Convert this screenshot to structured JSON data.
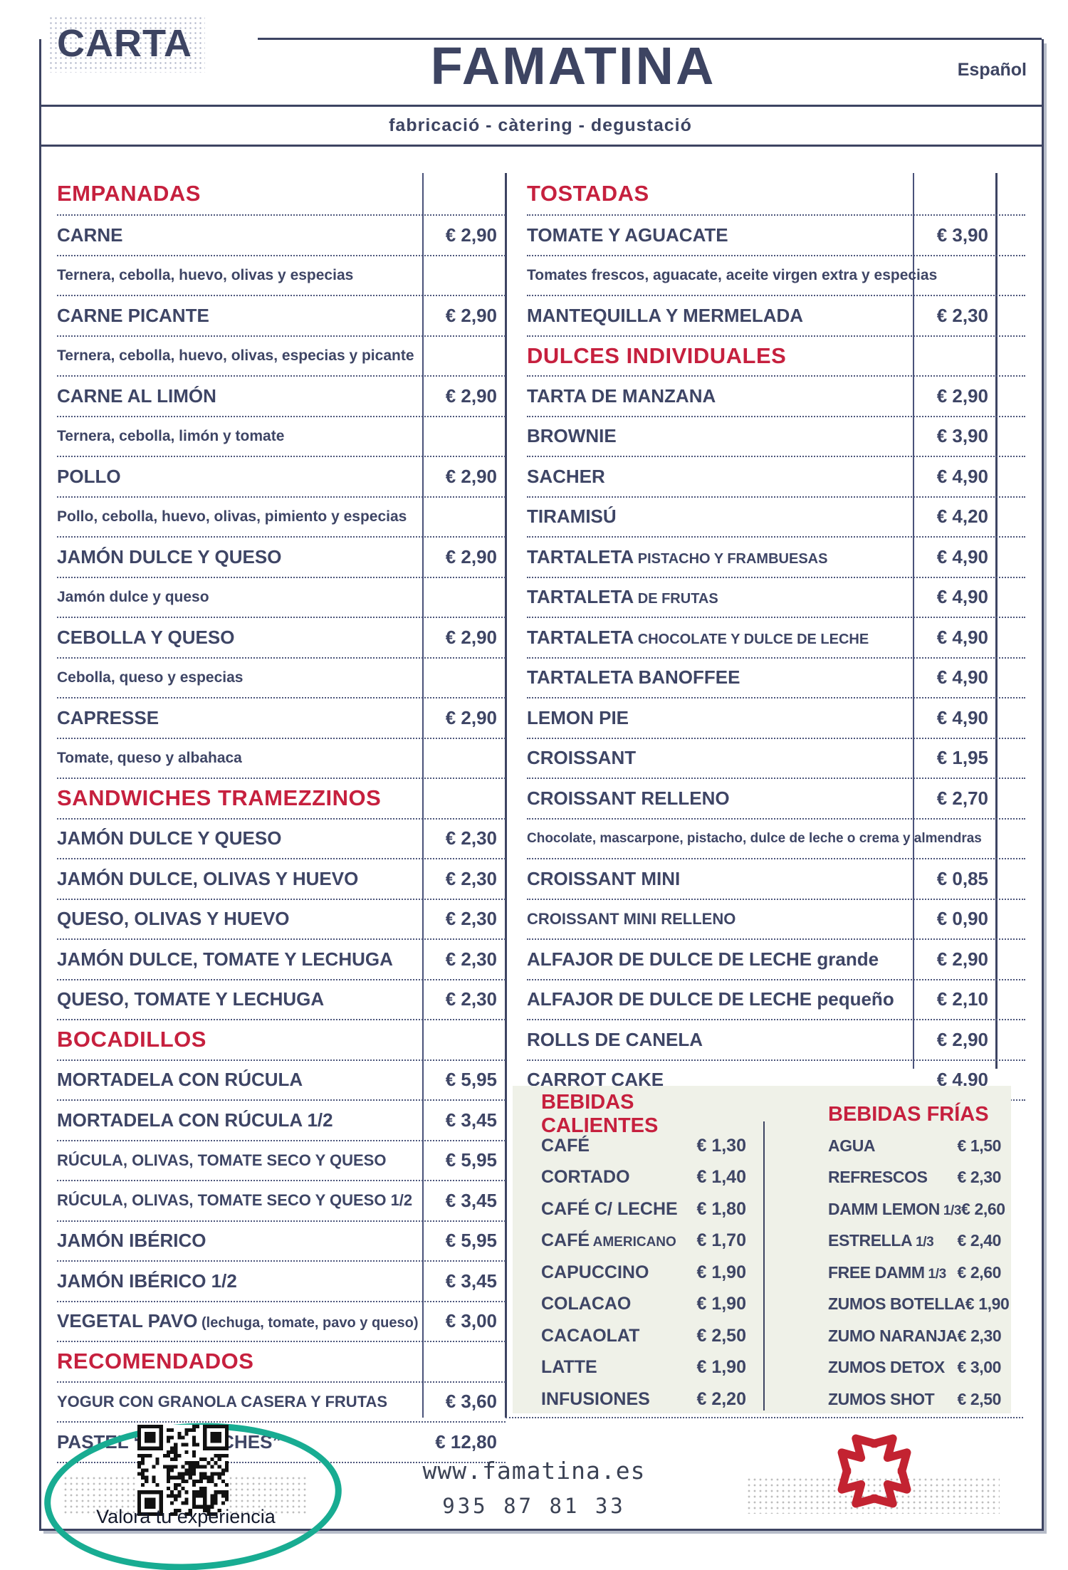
{
  "header": {
    "page_label": "CARTA",
    "brand": "FAMATINA",
    "language": "Español",
    "tagline": "fabricació - càtering - degustació"
  },
  "menu": {
    "left": [
      {
        "type": "heading",
        "text": "EMPANADAS"
      },
      {
        "type": "item",
        "name": "CARNE",
        "price": "€ 2,90"
      },
      {
        "type": "desc",
        "text": "Ternera, cebolla, huevo, olivas y especias"
      },
      {
        "type": "item",
        "name": "CARNE PICANTE",
        "price": "€ 2,90"
      },
      {
        "type": "desc",
        "text": "Ternera, cebolla, huevo, olivas, especias y picante"
      },
      {
        "type": "item",
        "name": "CARNE AL LIMÓN",
        "price": "€ 2,90"
      },
      {
        "type": "desc",
        "text": "Ternera, cebolla, limón y tomate"
      },
      {
        "type": "item",
        "name": "POLLO",
        "price": "€ 2,90"
      },
      {
        "type": "desc",
        "text": "Pollo, cebolla, huevo, olivas, pimiento y especias"
      },
      {
        "type": "item",
        "name": "JAMÓN DULCE Y QUESO",
        "price": "€ 2,90"
      },
      {
        "type": "desc",
        "text": "Jamón dulce y queso"
      },
      {
        "type": "item",
        "name": "CEBOLLA Y QUESO",
        "price": "€ 2,90"
      },
      {
        "type": "desc",
        "text": "Cebolla, queso y especias"
      },
      {
        "type": "item",
        "name": "CAPRESSE",
        "price": "€ 2,90"
      },
      {
        "type": "desc",
        "text": "Tomate, queso y albahaca"
      },
      {
        "type": "heading",
        "text": "SANDWICHES TRAMEZZINOS"
      },
      {
        "type": "item",
        "name": "JAMÓN DULCE Y QUESO",
        "price": "€ 2,30"
      },
      {
        "type": "item",
        "name": "JAMÓN DULCE, OLIVAS Y HUEVO",
        "price": "€ 2,30"
      },
      {
        "type": "item",
        "name": "QUESO, OLIVAS Y HUEVO",
        "price": "€ 2,30"
      },
      {
        "type": "item",
        "name": "JAMÓN DULCE, TOMATE Y LECHUGA",
        "price": "€ 2,30"
      },
      {
        "type": "item",
        "name": "QUESO, TOMATE Y LECHUGA",
        "price": "€ 2,30"
      },
      {
        "type": "heading",
        "text": "BOCADILLOS"
      },
      {
        "type": "item",
        "name": "MORTADELA CON RÚCULA",
        "price": "€ 5,95"
      },
      {
        "type": "item",
        "name": "MORTADELA CON RÚCULA 1/2",
        "price": "€ 3,45"
      },
      {
        "type": "item",
        "name": "RÚCULA, OLIVAS, TOMATE SECO Y QUESO",
        "price": "€ 5,95",
        "size": "small"
      },
      {
        "type": "item",
        "name": "RÚCULA, OLIVAS, TOMATE SECO Y QUESO 1/2",
        "price": "€ 3,45",
        "size": "small"
      },
      {
        "type": "item",
        "name": "JAMÓN IBÉRICO",
        "price": "€ 5,95"
      },
      {
        "type": "item",
        "name": "JAMÓN IBÉRICO 1/2",
        "price": "€ 3,45"
      },
      {
        "type": "item",
        "name": "VEGETAL PAVO",
        "sub": "(lechuga, tomate, pavo y queso)",
        "price": "€ 3,00"
      },
      {
        "type": "heading",
        "text": "RECOMENDADOS"
      },
      {
        "type": "item",
        "name": "YOGUR CON GRANOLA CASERA Y FRUTAS",
        "price": "€ 3,60",
        "size": "small"
      },
      {
        "type": "item",
        "name": "PASTEL “TRES LECHES”",
        "price": "€ 12,80"
      }
    ],
    "right": [
      {
        "type": "heading",
        "text": "TOSTADAS"
      },
      {
        "type": "item",
        "name": "TOMATE Y AGUACATE",
        "price": "€ 3,90"
      },
      {
        "type": "desc",
        "text": "Tomates frescos, aguacate, aceite virgen extra y especias"
      },
      {
        "type": "item",
        "name": "MANTEQUILLA Y MERMELADA",
        "price": "€ 2,30"
      },
      {
        "type": "heading",
        "text": "DULCES INDIVIDUALES"
      },
      {
        "type": "item",
        "name": "TARTA DE MANZANA",
        "price": "€ 2,90"
      },
      {
        "type": "item",
        "name": "BROWNIE",
        "price": "€ 3,90"
      },
      {
        "type": "item",
        "name": "SACHER",
        "price": "€ 4,90"
      },
      {
        "type": "item",
        "name": "TIRAMISÚ",
        "price": "€ 4,20"
      },
      {
        "type": "item",
        "name": "TARTALETA",
        "sub": "PISTACHO Y FRAMBUESAS",
        "price": "€ 4,90"
      },
      {
        "type": "item",
        "name": "TARTALETA",
        "sub": "DE FRUTAS",
        "price": "€ 4,90"
      },
      {
        "type": "item",
        "name": "TARTALETA",
        "sub": "CHOCOLATE Y DULCE DE LECHE",
        "price": "€ 4,90"
      },
      {
        "type": "item",
        "name": "TARTALETA BANOFFEE",
        "price": "€ 4,90"
      },
      {
        "type": "item",
        "name": "LEMON PIE",
        "price": "€ 4,90"
      },
      {
        "type": "item",
        "name": "CROISSANT",
        "price": "€ 1,95"
      },
      {
        "type": "item",
        "name": "CROISSANT RELLENO",
        "price": "€ 2,70"
      },
      {
        "type": "desc",
        "text": "Chocolate, mascarpone, pistacho, dulce de leche o crema y almendras",
        "size": "small"
      },
      {
        "type": "item",
        "name": "CROISSANT MINI",
        "price": "€ 0,85"
      },
      {
        "type": "item",
        "name": "CROISSANT MINI RELLENO",
        "price": "€ 0,90",
        "size": "small"
      },
      {
        "type": "item",
        "name": "ALFAJOR DE DULCE DE LECHE grande",
        "price": "€ 2,90"
      },
      {
        "type": "item",
        "name": "ALFAJOR DE DULCE DE LECHE pequeño",
        "price": "€ 2,10"
      },
      {
        "type": "item",
        "name": "ROLLS DE CANELA",
        "price": "€ 2,90"
      },
      {
        "type": "item",
        "name": "CARROT CAKE",
        "price": "€ 4,90"
      }
    ]
  },
  "drinks": {
    "hot": {
      "title": "BEBIDAS CALIENTES",
      "items": [
        {
          "name": "CAFÉ",
          "price": "€ 1,30"
        },
        {
          "name": "CORTADO",
          "price": "€ 1,40"
        },
        {
          "name": "CAFÉ C/ LECHE",
          "price": "€ 1,80"
        },
        {
          "name": "CAFÉ",
          "sub": "AMERICANO",
          "price": "€ 1,70"
        },
        {
          "name": "CAPUCCINO",
          "price": "€ 1,90"
        },
        {
          "name": "COLACAO",
          "price": "€ 1,90"
        },
        {
          "name": "CACAOLAT",
          "price": "€ 2,50"
        },
        {
          "name": "LATTE",
          "price": "€ 1,90"
        },
        {
          "name": "INFUSIONES",
          "price": "€ 2,20"
        }
      ]
    },
    "cold": {
      "title": "BEBIDAS FRÍAS",
      "items": [
        {
          "name": "AGUA",
          "price": "€ 1,50"
        },
        {
          "name": "REFRESCOS",
          "price": "€ 2,30"
        },
        {
          "name": "DAMM LEMON",
          "sub": "1/3",
          "price": "€ 2,60"
        },
        {
          "name": "ESTRELLA",
          "sub": "1/3",
          "price": "€ 2,40"
        },
        {
          "name": "FREE DAMM",
          "sub": "1/3",
          "price": "€ 2,60"
        },
        {
          "name": "ZUMOS BOTELLA",
          "price": "€ 1,90"
        },
        {
          "name": "ZUMO NARANJA",
          "price": "€ 2,30"
        },
        {
          "name": "ZUMOS DETOX",
          "price": "€ 3,00"
        },
        {
          "name": "ZUMOS SHOT",
          "price": "€ 2,50"
        }
      ]
    }
  },
  "footer": {
    "qr_caption": "Valora tu experiencia",
    "website": "www.famatina.es",
    "phone": "935 87 81 33"
  },
  "colors": {
    "accent_red": "#c6203e",
    "navy": "#3e4565",
    "teal": "#18ac92",
    "logo_red": "#c32331",
    "drinks_box_bg": "#eff1e8"
  }
}
